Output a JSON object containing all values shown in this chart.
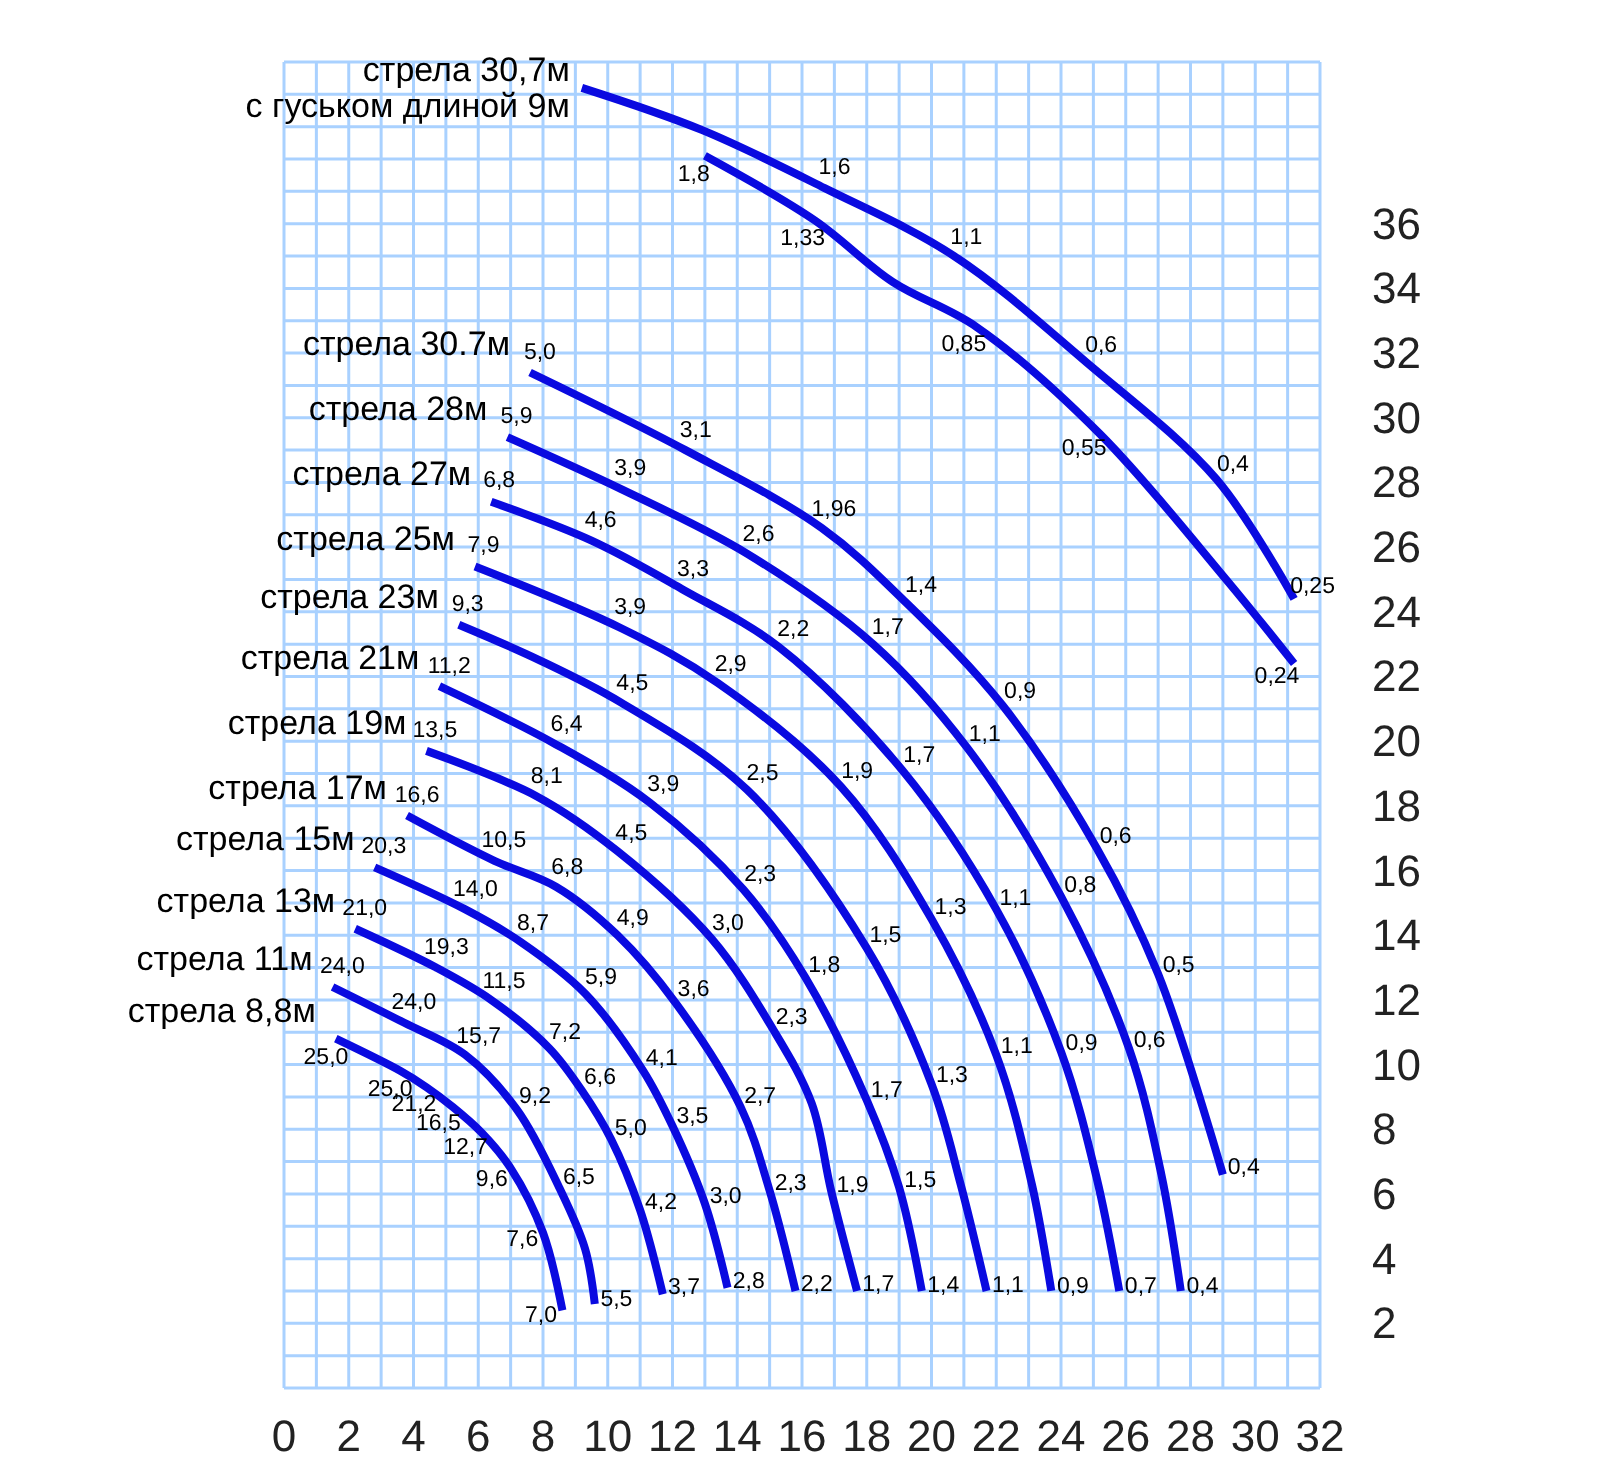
{
  "chart_data": {
    "type": "line",
    "xlim": [
      0,
      32
    ],
    "ylim": [
      0,
      41
    ],
    "xticks": [
      0,
      {
        "value": 1,
        "label": null
      },
      2,
      {
        "value": 3,
        "label": null
      },
      4,
      {
        "value": 5,
        "label": null
      },
      6,
      {
        "value": 7,
        "label": null
      },
      8,
      {
        "value": 9,
        "label": null
      },
      10,
      {
        "value": 11,
        "label": null
      },
      12,
      {
        "value": 13,
        "label": null
      },
      14,
      {
        "value": 15,
        "label": null
      },
      16,
      {
        "value": 17,
        "label": null
      },
      18,
      {
        "value": 19,
        "label": null
      },
      20,
      {
        "value": 21,
        "label": null
      },
      22,
      {
        "value": 23,
        "label": null
      },
      24,
      {
        "value": 25,
        "label": null
      },
      26,
      {
        "value": 27,
        "label": null
      },
      28,
      {
        "value": 29,
        "label": null
      },
      30,
      {
        "value": 31,
        "label": null
      },
      32
    ],
    "yticks": [
      {
        "value": 0,
        "label": null
      },
      {
        "value": 1,
        "label": null
      },
      2,
      {
        "value": 3,
        "label": null
      },
      4,
      {
        "value": 5,
        "label": null
      },
      6,
      {
        "value": 7,
        "label": null
      },
      8,
      {
        "value": 9,
        "label": null
      },
      10,
      {
        "value": 11,
        "label": null
      },
      12,
      {
        "value": 13,
        "label": null
      },
      14,
      {
        "value": 15,
        "label": null
      },
      16,
      {
        "value": 17,
        "label": null
      },
      18,
      {
        "value": 19,
        "label": null
      },
      20,
      {
        "value": 21,
        "label": null
      },
      22,
      {
        "value": 23,
        "label": null
      },
      24,
      {
        "value": 25,
        "label": null
      },
      26,
      {
        "value": 27,
        "label": null
      },
      28,
      {
        "value": 29,
        "label": null
      },
      30,
      {
        "value": 31,
        "label": null
      },
      32,
      {
        "value": 33,
        "label": null
      },
      34,
      {
        "value": 35,
        "label": null
      },
      36,
      {
        "value": 37,
        "label": null
      },
      {
        "value": 38,
        "label": null
      },
      {
        "value": 39,
        "label": null
      },
      {
        "value": 40,
        "label": null
      },
      {
        "value": 41,
        "label": null
      }
    ],
    "grid": true,
    "series": [
      {
        "name": "стрела 8,8м",
        "color": "#0a0ae0",
        "x": [
          1.6,
          3.6,
          4.4,
          5.2,
          6.1,
          7.0,
          8.0,
          8.6
        ],
        "values": [
          10.8,
          9.8,
          9.3,
          8.7,
          7.9,
          6.8,
          4.8,
          2.4
        ]
      },
      {
        "name": "стрела 11м",
        "color": "#0a0ae0",
        "x": [
          1.5,
          3.7,
          5.6,
          7.2,
          8.5,
          9.3,
          9.6
        ],
        "values": [
          12.4,
          11.3,
          10.3,
          8.6,
          6.2,
          4.3,
          2.6
        ]
      },
      {
        "name": "стрела 13м",
        "color": "#0a0ae0",
        "x": [
          2.2,
          4.7,
          6.4,
          8.2,
          9.2,
          10.1,
          11.0,
          11.7
        ],
        "values": [
          14.2,
          13.0,
          12.0,
          10.5,
          9.2,
          7.7,
          5.5,
          2.9
        ]
      },
      {
        "name": "стрела 15м",
        "color": "#0a0ae0",
        "x": [
          2.8,
          5.6,
          7.3,
          9.3,
          11.1,
          12.0,
          13.0,
          13.7
        ],
        "values": [
          16.1,
          14.8,
          13.8,
          12.2,
          9.8,
          8.1,
          5.7,
          3.1
        ]
      },
      {
        "name": "стрела 17м",
        "color": "#0a0ae0",
        "x": [
          3.8,
          6.5,
          8.4,
          10.3,
          12.1,
          14.1,
          15.0,
          15.8
        ],
        "values": [
          17.7,
          16.3,
          15.5,
          14.0,
          11.9,
          8.7,
          6.1,
          3.0
        ]
      },
      {
        "name": "стрела 19м",
        "color": "#0a0ae0",
        "x": [
          4.4,
          7.8,
          10.3,
          13.2,
          15.1,
          16.3,
          16.9,
          17.7
        ],
        "values": [
          19.7,
          18.3,
          16.6,
          13.9,
          11.1,
          8.8,
          6.1,
          3.0
        ]
      },
      {
        "name": "стрела 21м",
        "color": "#0a0ae0",
        "x": [
          4.8,
          8.4,
          11.3,
          14.2,
          16.1,
          18.0,
          19.0,
          19.7
        ],
        "values": [
          21.7,
          19.9,
          18.1,
          15.4,
          12.7,
          8.9,
          6.2,
          3.0
        ]
      },
      {
        "name": "стрела 23м",
        "color": "#0a0ae0",
        "x": [
          5.4,
          7.9,
          10.4,
          14.3,
          18.0,
          20.0,
          20.9,
          21.7
        ],
        "values": [
          23.6,
          22.5,
          21.2,
          18.5,
          13.6,
          9.4,
          6.3,
          3.0
        ]
      },
      {
        "name": "стрела 25м",
        "color": "#0a0ae0",
        "x": [
          5.9,
          10.4,
          13.4,
          17.2,
          20.0,
          22.0,
          23.1,
          23.7
        ],
        "values": [
          25.4,
          23.5,
          21.8,
          18.6,
          14.5,
          10.3,
          6.3,
          3.0
        ]
      },
      {
        "name": "стрела 27м",
        "color": "#0a0ae0",
        "x": [
          6.4,
          9.5,
          12.3,
          15.3,
          19.1,
          22.0,
          24.0,
          25.1,
          25.8
        ],
        "values": [
          27.4,
          26.2,
          24.7,
          22.9,
          19.1,
          14.8,
          10.4,
          6.5,
          3.0
        ]
      },
      {
        "name": "стрела 28м",
        "color": "#0a0ae0",
        "x": [
          6.9,
          10.4,
          14.3,
          18.2,
          21.1,
          24.0,
          26.1,
          27.1,
          27.7
        ],
        "values": [
          29.4,
          27.8,
          25.8,
          23.0,
          19.8,
          15.2,
          10.5,
          6.6,
          3.0
        ]
      },
      {
        "name": "стрела 30.7м",
        "color": "#0a0ae0",
        "x": [
          7.6,
          12.4,
          16.6,
          19.2,
          22.2,
          25.1,
          27.0,
          29.0
        ],
        "values": [
          31.4,
          29.0,
          26.6,
          24.3,
          21.1,
          16.7,
          12.8,
          6.6
        ]
      },
      {
        "name": "стрела 30,7м\nс гуськом длиной 9м",
        "color": "#0a0ae0",
        "x": [
          9.2,
          12.9,
          16.7,
          20.7,
          24.8,
          28.8,
          31.2
        ],
        "values": [
          40.2,
          38.9,
          37.1,
          35.0,
          31.7,
          28.1,
          24.4
        ]
      },
      {
        "color": "#0a0ae0",
        "x": [
          13.0,
          16.4,
          18.8,
          21.4,
          25.2,
          29.1,
          31.2
        ],
        "values": [
          38.1,
          36.1,
          34.2,
          32.8,
          29.5,
          25.0,
          22.4
        ]
      }
    ],
    "annotations": [
      {
        "text": "25,0",
        "x": 1.6,
        "y": 10.8
      },
      {
        "text": "25,0",
        "x": 3.6,
        "y": 9.8
      },
      {
        "text": "21,2",
        "x": 4.4,
        "y": 9.3
      },
      {
        "text": "16,5",
        "x": 5.2,
        "y": 8.7
      },
      {
        "text": "12,7",
        "x": 6.1,
        "y": 7.9
      },
      {
        "text": "9,6",
        "x": 7.0,
        "y": 6.8
      },
      {
        "text": "7,6",
        "x": 8.0,
        "y": 4.8
      },
      {
        "text": "7,0",
        "x": 8.6,
        "y": 2.4
      },
      {
        "text": "24,0",
        "x": 1.5,
        "y": 12.4
      },
      {
        "text": "24,0",
        "x": 3.7,
        "y": 11.3
      },
      {
        "text": "15,7",
        "x": 5.6,
        "y": 10.3
      },
      {
        "text": "9,2",
        "x": 7.2,
        "y": 8.6
      },
      {
        "text": "6,5",
        "x": 8.5,
        "y": 6.2
      },
      {
        "text": "5,5",
        "x": 9.6,
        "y": 2.6
      },
      {
        "text": "21,0",
        "x": 2.2,
        "y": 14.2
      },
      {
        "text": "19,3",
        "x": 4.7,
        "y": 13.0
      },
      {
        "text": "11,5",
        "x": 6.4,
        "y": 12.0
      },
      {
        "text": "7,2",
        "x": 8.2,
        "y": 10.5
      },
      {
        "text": "6,6",
        "x": 9.2,
        "y": 9.2
      },
      {
        "text": "5,0",
        "x": 10.1,
        "y": 7.7
      },
      {
        "text": "4,2",
        "x": 11.0,
        "y": 5.5
      },
      {
        "text": "3,7",
        "x": 11.7,
        "y": 2.9
      },
      {
        "text": "20,3",
        "x": 2.8,
        "y": 16.1
      },
      {
        "text": "14,0",
        "x": 5.6,
        "y": 14.8
      },
      {
        "text": "8,7",
        "x": 7.3,
        "y": 13.8
      },
      {
        "text": "5,9",
        "x": 9.3,
        "y": 12.2
      },
      {
        "text": "4,1",
        "x": 11.1,
        "y": 9.8
      },
      {
        "text": "3,5",
        "x": 12.0,
        "y": 8.1
      },
      {
        "text": "3,0",
        "x": 13.0,
        "y": 5.7
      },
      {
        "text": "2,8",
        "x": 13.7,
        "y": 3.1
      },
      {
        "text": "16,6",
        "x": 3.8,
        "y": 17.7
      },
      {
        "text": "10,5",
        "x": 6.5,
        "y": 16.3
      },
      {
        "text": "6,8",
        "x": 8.4,
        "y": 15.5
      },
      {
        "text": "4,9",
        "x": 10.3,
        "y": 14.0
      },
      {
        "text": "3,6",
        "x": 12.1,
        "y": 11.9
      },
      {
        "text": "2,7",
        "x": 14.1,
        "y": 8.7
      },
      {
        "text": "2,3",
        "x": 15.0,
        "y": 6.1
      },
      {
        "text": "2,2",
        "x": 15.8,
        "y": 3.0
      },
      {
        "text": "13,5",
        "x": 4.4,
        "y": 19.7
      },
      {
        "text": "8,1",
        "x": 7.8,
        "y": 18.3
      },
      {
        "text": "4,5",
        "x": 10.3,
        "y": 16.6
      },
      {
        "text": "3,0",
        "x": 13.2,
        "y": 13.9
      },
      {
        "text": "2,3",
        "x": 15.1,
        "y": 11.1
      },
      {
        "text": "1,9",
        "x": 16.9,
        "y": 6.1
      },
      {
        "text": "1,7",
        "x": 17.7,
        "y": 3.0
      },
      {
        "text": "11,2",
        "x": 4.8,
        "y": 21.7
      },
      {
        "text": "6,4",
        "x": 8.4,
        "y": 19.9
      },
      {
        "text": "3,9",
        "x": 11.3,
        "y": 18.1
      },
      {
        "text": "2,3",
        "x": 14.2,
        "y": 15.4
      },
      {
        "text": "1,8",
        "x": 16.1,
        "y": 12.7
      },
      {
        "text": "1,7",
        "x": 18.0,
        "y": 8.9
      },
      {
        "text": "1,5",
        "x": 19.0,
        "y": 6.2
      },
      {
        "text": "1,4",
        "x": 19.7,
        "y": 3.0
      },
      {
        "text": "9,3",
        "x": 5.4,
        "y": 23.6
      },
      {
        "text": "4,5",
        "x": 10.4,
        "y": 21.2
      },
      {
        "text": "2,5",
        "x": 14.3,
        "y": 18.5
      },
      {
        "text": "1,5",
        "x": 18.0,
        "y": 13.6
      },
      {
        "text": "1,3",
        "x": 20.0,
        "y": 9.4
      },
      {
        "text": "1,1",
        "x": 21.7,
        "y": 3.0
      },
      {
        "text": "7,9",
        "x": 5.9,
        "y": 25.4
      },
      {
        "text": "3,9",
        "x": 10.4,
        "y": 23.5
      },
      {
        "text": "2,9",
        "x": 13.4,
        "y": 21.8
      },
      {
        "text": "1,9",
        "x": 17.2,
        "y": 18.6
      },
      {
        "text": "1,3",
        "x": 20.0,
        "y": 14.5
      },
      {
        "text": "1,1",
        "x": 22.0,
        "y": 10.3
      },
      {
        "text": "0,9",
        "x": 23.7,
        "y": 3.0
      },
      {
        "text": "6,8",
        "x": 6.4,
        "y": 27.4
      },
      {
        "text": "4,6",
        "x": 9.5,
        "y": 26.2
      },
      {
        "text": "3,3",
        "x": 12.3,
        "y": 24.7
      },
      {
        "text": "2,2",
        "x": 15.3,
        "y": 22.9
      },
      {
        "text": "1,7",
        "x": 19.1,
        "y": 19.1
      },
      {
        "text": "1,1",
        "x": 22.0,
        "y": 14.8
      },
      {
        "text": "0,9",
        "x": 24.0,
        "y": 10.4
      },
      {
        "text": "0,7",
        "x": 25.8,
        "y": 3.0
      },
      {
        "text": "5,9",
        "x": 6.9,
        "y": 29.4
      },
      {
        "text": "3,9",
        "x": 10.4,
        "y": 27.8
      },
      {
        "text": "2,6",
        "x": 14.3,
        "y": 25.8
      },
      {
        "text": "1,7",
        "x": 18.2,
        "y": 23.0
      },
      {
        "text": "1,1",
        "x": 21.1,
        "y": 19.8
      },
      {
        "text": "0,8",
        "x": 24.0,
        "y": 15.2
      },
      {
        "text": "0,6",
        "x": 26.1,
        "y": 10.5
      },
      {
        "text": "0,4",
        "x": 27.7,
        "y": 3.0
      },
      {
        "text": "5,0",
        "x": 7.6,
        "y": 31.4
      },
      {
        "text": "3,1",
        "x": 12.4,
        "y": 29.0
      },
      {
        "text": "1,96",
        "x": 16.6,
        "y": 26.6
      },
      {
        "text": "1,4",
        "x": 19.2,
        "y": 24.3
      },
      {
        "text": "0,9",
        "x": 22.2,
        "y": 21.1
      },
      {
        "text": "0,6",
        "x": 25.1,
        "y": 16.7
      },
      {
        "text": "0,5",
        "x": 27.0,
        "y": 12.8
      },
      {
        "text": "0,4",
        "x": 29.0,
        "y": 6.6
      },
      {
        "text": "1,6",
        "x": 16.7,
        "y": 37.1
      },
      {
        "text": "1,1",
        "x": 20.7,
        "y": 35.0
      },
      {
        "text": "0,6",
        "x": 24.8,
        "y": 31.7
      },
      {
        "text": "0,4",
        "x": 28.8,
        "y": 28.1
      },
      {
        "text": "0,25",
        "x": 31.2,
        "y": 24.4
      },
      {
        "text": "1,8",
        "x": 13.0,
        "y": 38.1
      },
      {
        "text": "1,33",
        "x": 16.4,
        "y": 36.1
      },
      {
        "text": "0,85",
        "x": 21.4,
        "y": 32.8
      },
      {
        "text": "0,55",
        "x": 25.2,
        "y": 29.5
      },
      {
        "text": "0,24",
        "x": 31.2,
        "y": 22.4
      }
    ]
  }
}
